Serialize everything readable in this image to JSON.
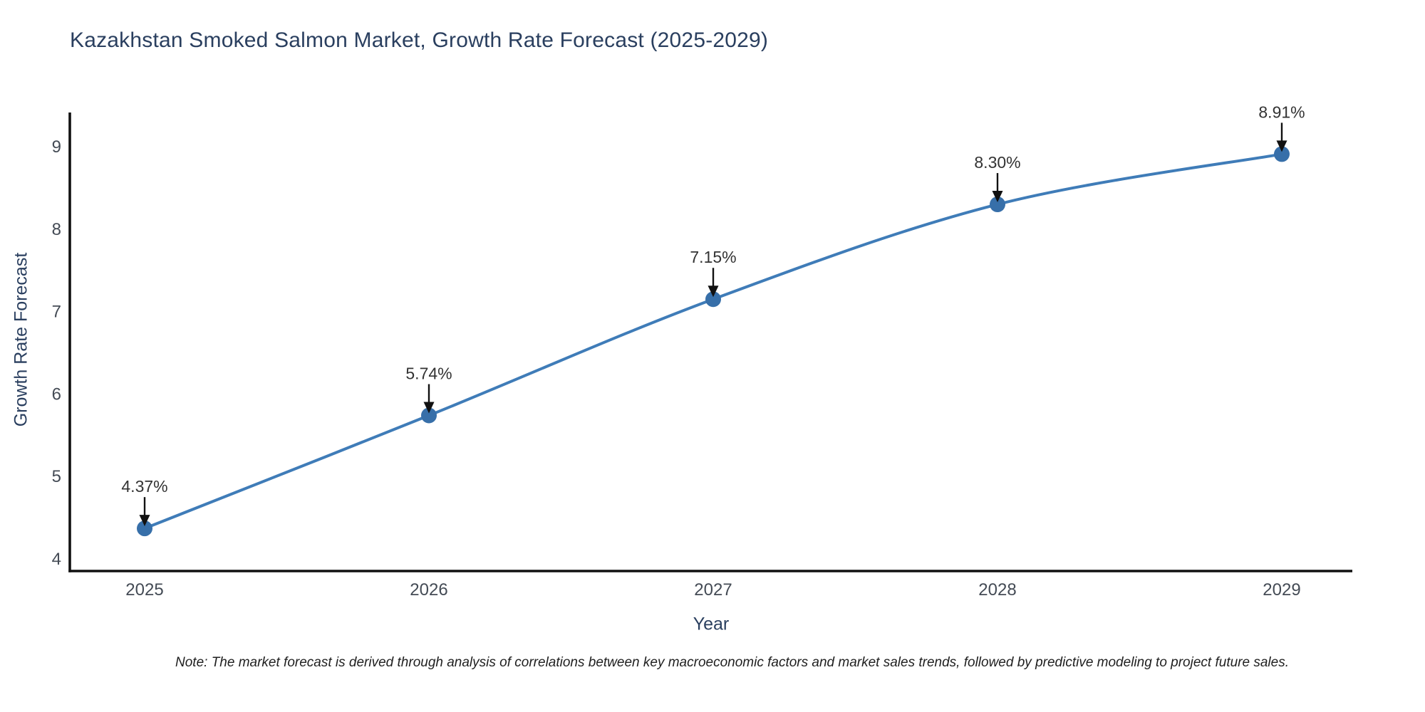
{
  "figure": {
    "title": "Kazakhstan Smoked Salmon Market, Growth Rate Forecast (2025-2029)",
    "note": "Note: The market forecast is derived through analysis of correlations between key macroeconomic factors and market sales trends, followed by predictive modeling to project future sales."
  },
  "chart_data": {
    "type": "line",
    "title": "Kazakhstan Smoked Salmon Market, Growth Rate Forecast (2025-2029)",
    "x": [
      2025,
      2026,
      2027,
      2028,
      2029
    ],
    "series": [
      {
        "name": "Growth Rate Forecast",
        "values": [
          4.37,
          5.74,
          7.15,
          8.3,
          8.91
        ]
      }
    ],
    "point_labels": [
      "4.37%",
      "5.74%",
      "7.15%",
      "8.30%",
      "8.91%"
    ],
    "xlabel": "Year",
    "ylabel": "Growth Rate Forecast",
    "y_ticks": [
      4,
      5,
      6,
      7,
      8,
      9
    ],
    "ylim": [
      4,
      9.4
    ],
    "xlim": [
      2024.74,
      2029.25
    ],
    "grid": false,
    "legend_position": "none",
    "line_shape": "spline",
    "marker": "circle",
    "annotation_arrows": true,
    "colors": {
      "line": "#3f7cb8",
      "marker": "#376fa9",
      "axis": "#111111",
      "tick_label": "#444b55",
      "axis_title": "#2a3f5f",
      "title": "#2a3f5f",
      "annotation": "#333333",
      "arrow": "#111111",
      "background": "#ffffff"
    }
  }
}
